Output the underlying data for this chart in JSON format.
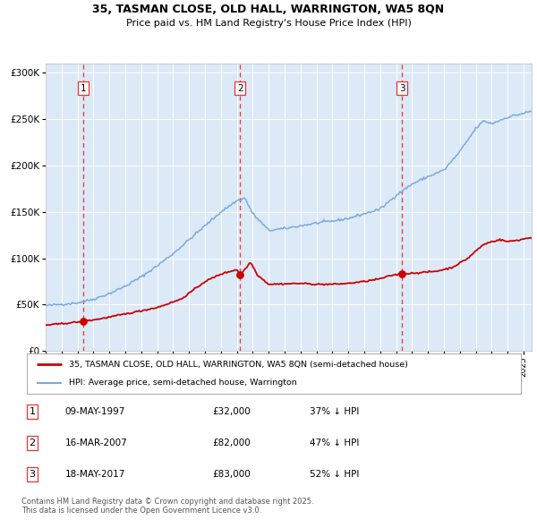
{
  "title_line1": "35, TASMAN CLOSE, OLD HALL, WARRINGTON, WA5 8QN",
  "title_line2": "Price paid vs. HM Land Registry's House Price Index (HPI)",
  "bg_color": "#dce9f7",
  "red_line_label": "35, TASMAN CLOSE, OLD HALL, WARRINGTON, WA5 8QN (semi-detached house)",
  "blue_line_label": "HPI: Average price, semi-detached house, Warrington",
  "sale_dates": [
    1997.355,
    2007.204,
    2017.372
  ],
  "sale_prices": [
    32000,
    82000,
    83000
  ],
  "sale_annotations": [
    {
      "num": "1",
      "date": "09-MAY-1997",
      "price": "£32,000",
      "hpi": "37% ↓ HPI"
    },
    {
      "num": "2",
      "date": "16-MAR-2007",
      "price": "£82,000",
      "hpi": "47% ↓ HPI"
    },
    {
      "num": "3",
      "date": "18-MAY-2017",
      "price": "£83,000",
      "hpi": "52% ↓ HPI"
    }
  ],
  "footer": "Contains HM Land Registry data © Crown copyright and database right 2025.\nThis data is licensed under the Open Government Licence v3.0.",
  "ylim": [
    0,
    310000
  ],
  "xlim_start": 1995.0,
  "xlim_end": 2025.5,
  "red_color": "#cc0000",
  "blue_color": "#7aaadd",
  "dashed_color": "#ee3333",
  "grid_color": "#ffffff",
  "hpi_waypoints_t": [
    1995.0,
    1996.0,
    1997.0,
    1998.0,
    1999.0,
    2000.0,
    2001.0,
    2002.0,
    2003.0,
    2004.0,
    2005.0,
    2006.0,
    2007.0,
    2007.5,
    2008.0,
    2009.0,
    2010.0,
    2011.0,
    2012.0,
    2013.0,
    2014.0,
    2015.0,
    2016.0,
    2017.0,
    2018.0,
    2019.0,
    2020.0,
    2021.0,
    2022.0,
    2022.5,
    2023.0,
    2024.0,
    2025.4
  ],
  "hpi_waypoints_v": [
    49000,
    50500,
    52000,
    56000,
    62000,
    70000,
    80000,
    92000,
    105000,
    120000,
    135000,
    150000,
    162000,
    165000,
    148000,
    130000,
    132000,
    135000,
    138000,
    140000,
    143000,
    148000,
    153000,
    168000,
    180000,
    188000,
    195000,
    215000,
    240000,
    248000,
    245000,
    252000,
    258000
  ],
  "red_waypoints_t": [
    1995.0,
    1996.0,
    1997.355,
    1998.5,
    2000.0,
    2002.0,
    2003.5,
    2005.0,
    2006.0,
    2007.0,
    2007.204,
    2007.6,
    2007.85,
    2008.3,
    2009.0,
    2010.0,
    2011.0,
    2012.0,
    2013.0,
    2014.0,
    2015.0,
    2016.0,
    2016.8,
    2017.372,
    2018.0,
    2018.5,
    2019.5,
    2020.5,
    2021.0,
    2021.5,
    2022.0,
    2022.5,
    2023.0,
    2023.5,
    2024.0,
    2024.8,
    2025.3
  ],
  "red_waypoints_v": [
    28000,
    29500,
    32000,
    35000,
    40000,
    47000,
    56000,
    75000,
    83000,
    88000,
    82000,
    90000,
    96000,
    82000,
    72000,
    72500,
    73000,
    72000,
    72000,
    73000,
    75000,
    78000,
    82000,
    83000,
    84000,
    84500,
    86000,
    90000,
    95000,
    100000,
    108000,
    115000,
    118000,
    120000,
    118000,
    120000,
    122000
  ]
}
